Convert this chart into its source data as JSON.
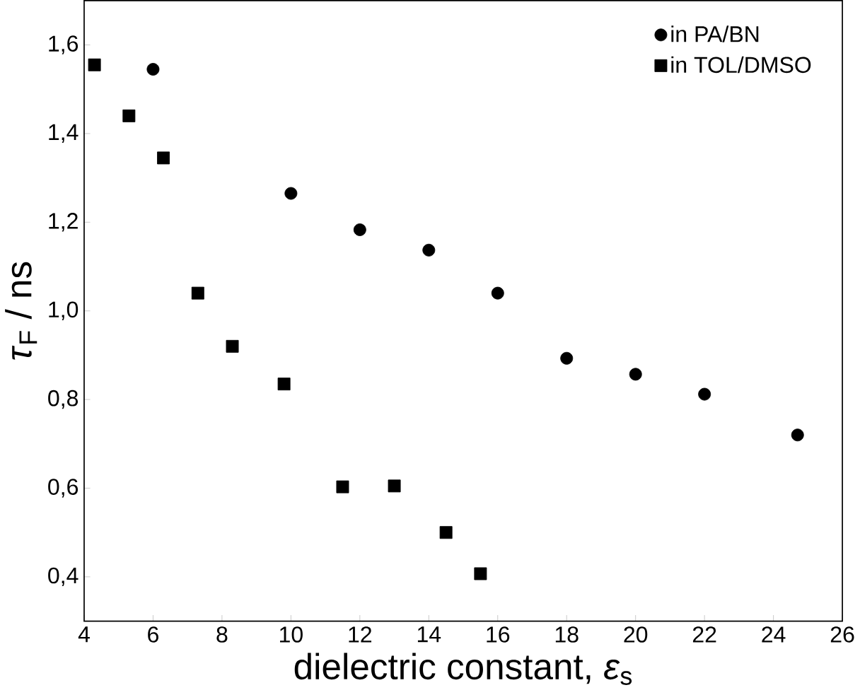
{
  "chart_data": {
    "type": "scatter",
    "xlabel": "dielectric constant, *ε*$_{s}$",
    "ylabel": "*τ*$_{F}$ / ns",
    "xlim": [
      4,
      26
    ],
    "ylim": [
      0.3,
      1.7
    ],
    "xticks": [
      4,
      6,
      8,
      10,
      12,
      14,
      16,
      18,
      20,
      22,
      24,
      26
    ],
    "yticks": [
      {
        "value": 0.4,
        "label": "0,4"
      },
      {
        "value": 0.6,
        "label": "0,6"
      },
      {
        "value": 0.8,
        "label": "0,8"
      },
      {
        "value": 1.0,
        "label": "1,0"
      },
      {
        "value": 1.2,
        "label": "1,2"
      },
      {
        "value": 1.4,
        "label": "1,4"
      },
      {
        "value": 1.6,
        "label": "1,6"
      }
    ],
    "legend": "top right",
    "grid": false,
    "series": [
      {
        "name": "in PA/BN",
        "color": "#000000",
        "marker": "circle",
        "x": [
          6,
          10,
          12,
          14,
          16,
          18,
          20,
          22,
          24.7
        ],
        "values": [
          1.545,
          1.265,
          1.183,
          1.137,
          1.04,
          0.893,
          0.857,
          0.812,
          0.72
        ]
      },
      {
        "name": "in TOL/DMSO",
        "color": "#000000",
        "marker": "square",
        "x": [
          4.3,
          5.3,
          6.3,
          7.3,
          8.3,
          9.8,
          11.5,
          13,
          14.5,
          15.5
        ],
        "values": [
          1.555,
          1.44,
          1.345,
          1.04,
          0.92,
          0.835,
          0.603,
          0.605,
          0.5,
          0.407
        ]
      }
    ]
  }
}
